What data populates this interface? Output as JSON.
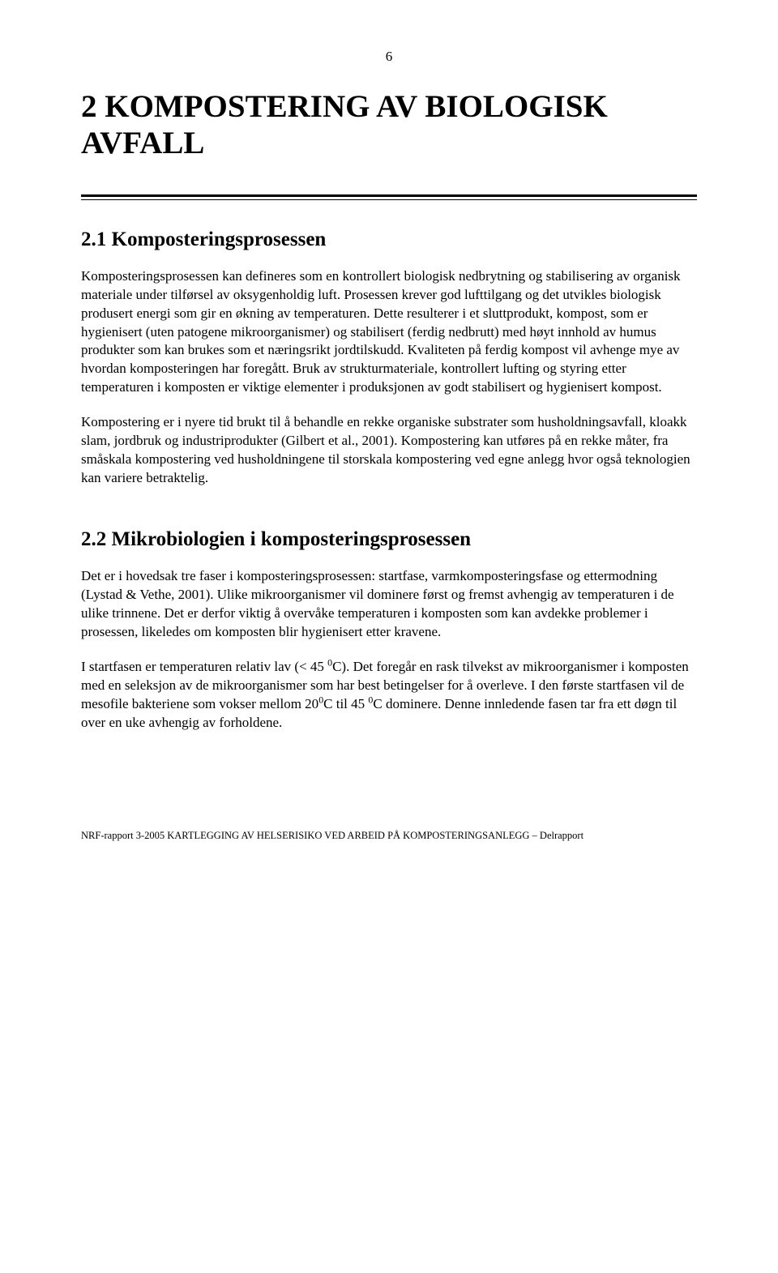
{
  "pageNumber": "6",
  "title": "2 KOMPOSTERING AV BIOLOGISK AVFALL",
  "section1": {
    "heading": "2.1 Komposteringsprosessen",
    "para1": "Komposteringsprosessen kan defineres som en kontrollert biologisk nedbrytning og stabilisering av organisk materiale under tilførsel av oksygenholdig luft. Prosessen krever god lufttilgang og det utvikles biologisk produsert energi som gir en økning av temperaturen. Dette resulterer i et sluttprodukt, kompost,  som er hygienisert (uten patogene mikroorganismer) og stabilisert (ferdig nedbrutt) med høyt innhold av humus produkter som kan brukes som et næringsrikt jordtilskudd. Kvaliteten på ferdig kompost vil avhenge mye av hvordan komposteringen har foregått. Bruk av strukturmateriale, kontrollert lufting og styring etter temperaturen i komposten er viktige elementer i produksjonen av godt stabilisert og hygienisert kompost.",
    "para2": "Kompostering er i nyere tid brukt til å behandle en rekke organiske substrater som husholdningsavfall, kloakk slam, jordbruk og industriprodukter (Gilbert et al., 2001). Kompostering kan utføres på en rekke måter, fra småskala kompostering ved husholdningene til storskala kompostering ved egne anlegg hvor også teknologien kan variere betraktelig."
  },
  "section2": {
    "heading": "2.2 Mikrobiologien i komposteringsprosessen",
    "para1": "Det er i hovedsak tre faser i komposteringsprosessen: startfase, varmkomposteringsfase og ettermodning (Lystad & Vethe, 2001). Ulike mikroorganismer vil dominere først og fremst avhengig av temperaturen i de ulike trinnene. Det er derfor viktig å overvåke temperaturen i komposten som kan avdekke problemer i prosessen, likeledes om komposten blir hygienisert etter kravene.",
    "para2_pre": "I startfasen er temperaturen relativ lav (< 45 ",
    "para2_mid1": "C). Det foregår en rask tilvekst av mikroorganismer i komposten med en seleksjon av de mikroorganismer som har best betingelser for å overleve. I den første startfasen vil de mesofile bakteriene som vokser mellom 20",
    "para2_mid2": "C til 45 ",
    "para2_post": "C dominere. Denne innledende fasen tar fra ett døgn til over en uke avhengig av forholdene.",
    "sup": "0"
  },
  "footer": "NRF-rapport 3-2005 KARTLEGGING AV HELSERISIKO VED ARBEID PÅ KOMPOSTERINGSANLEGG – Delrapport"
}
